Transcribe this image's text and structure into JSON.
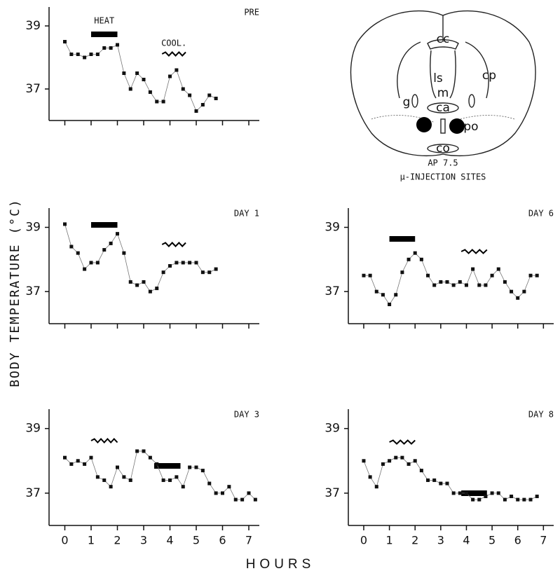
{
  "y_label": "BODY TEMPERATURE (°C)",
  "x_label": "HOURS",
  "diagram": {
    "labels": [
      "cc",
      "ls",
      "cp",
      "m",
      "g",
      "ca",
      "po",
      "co"
    ],
    "caption": "AP 7.5",
    "caption2": "μ-INJECTION SITES"
  },
  "chart_data": [
    {
      "type": "line",
      "title": "PRE",
      "color": "#111111",
      "x": [
        0,
        0.25,
        0.5,
        0.75,
        1,
        1.25,
        1.5,
        1.75,
        2,
        2.25,
        2.5,
        2.75,
        3,
        3.25,
        3.5,
        3.75,
        4,
        4.25,
        4.5,
        4.75,
        5,
        5.25,
        5.5,
        5.75
      ],
      "values": [
        38.5,
        38.1,
        38.1,
        38.0,
        38.1,
        38.1,
        38.3,
        38.3,
        38.4,
        37.5,
        37.0,
        37.5,
        37.3,
        36.9,
        36.6,
        36.6,
        37.4,
        37.6,
        37.0,
        36.8,
        36.3,
        36.5,
        36.8,
        36.7
      ],
      "heat": [
        1,
        2
      ],
      "cool": [
        3.7,
        4.6
      ],
      "heat_label": "HEAT",
      "cool_label": "COOL.",
      "xlim": [
        -0.6,
        7.4
      ],
      "xticks": [
        0,
        1,
        2,
        3,
        4,
        5,
        6,
        7
      ],
      "show_xtick_labels": false,
      "ylim": [
        36,
        39.6
      ],
      "yticks": [
        37,
        39
      ]
    },
    {
      "type": "line",
      "title": "DAY 1",
      "color": "#111111",
      "x": [
        0,
        0.25,
        0.5,
        0.75,
        1,
        1.25,
        1.5,
        1.75,
        2,
        2.25,
        2.5,
        2.75,
        3,
        3.25,
        3.5,
        3.75,
        4,
        4.25,
        4.5,
        4.75,
        5,
        5.25,
        5.5,
        5.75
      ],
      "values": [
        39.1,
        38.4,
        38.2,
        37.7,
        37.9,
        37.9,
        38.3,
        38.5,
        38.8,
        38.2,
        37.3,
        37.2,
        37.3,
        37.0,
        37.1,
        37.6,
        37.8,
        37.9,
        37.9,
        37.9,
        37.9,
        37.6,
        37.6,
        37.7
      ],
      "heat": [
        1,
        2
      ],
      "cool": [
        3.7,
        4.6
      ],
      "xlim": [
        -0.6,
        7.4
      ],
      "xticks": [
        0,
        1,
        2,
        3,
        4,
        5,
        6,
        7
      ],
      "show_xtick_labels": false,
      "ylim": [
        36,
        39.6
      ],
      "yticks": [
        37,
        39
      ]
    },
    {
      "type": "line",
      "title": "DAY 6",
      "color": "#111111",
      "x": [
        0,
        0.25,
        0.5,
        0.75,
        1,
        1.25,
        1.5,
        1.75,
        2,
        2.25,
        2.5,
        2.75,
        3,
        3.25,
        3.5,
        3.75,
        4,
        4.25,
        4.5,
        4.75,
        5,
        5.25,
        5.5,
        5.75,
        6,
        6.25,
        6.5,
        6.75
      ],
      "values": [
        37.5,
        37.5,
        37.0,
        36.9,
        36.6,
        36.9,
        37.6,
        38.0,
        38.2,
        38.0,
        37.5,
        37.2,
        37.3,
        37.3,
        37.2,
        37.3,
        37.2,
        37.7,
        37.2,
        37.2,
        37.5,
        37.7,
        37.3,
        37.0,
        36.8,
        37.0,
        37.5,
        37.5
      ],
      "heat": [
        1,
        2
      ],
      "cool": [
        3.8,
        4.8
      ],
      "xlim": [
        -0.6,
        7.4
      ],
      "xticks": [
        0,
        1,
        2,
        3,
        4,
        5,
        6,
        7
      ],
      "show_xtick_labels": false,
      "ylim": [
        36,
        39.6
      ],
      "yticks": [
        37,
        39
      ]
    },
    {
      "type": "line",
      "title": "DAY 3",
      "color": "#111111",
      "x": [
        0,
        0.25,
        0.5,
        0.75,
        1,
        1.25,
        1.5,
        1.75,
        2,
        2.25,
        2.5,
        2.75,
        3,
        3.25,
        3.5,
        3.75,
        4,
        4.25,
        4.5,
        4.75,
        5,
        5.25,
        5.5,
        5.75,
        6,
        6.25,
        6.5,
        6.75,
        7,
        7.25
      ],
      "values": [
        38.1,
        37.9,
        38.0,
        37.9,
        38.1,
        37.5,
        37.4,
        37.2,
        37.8,
        37.5,
        37.4,
        38.3,
        38.3,
        38.1,
        37.9,
        37.4,
        37.4,
        37.5,
        37.2,
        37.8,
        37.8,
        37.7,
        37.3,
        37.0,
        37.0,
        37.2,
        36.8,
        36.8,
        37.0,
        36.8
      ],
      "heat": [
        3.4,
        4.4
      ],
      "cool": [
        1,
        2
      ],
      "xlim": [
        -0.6,
        7.4
      ],
      "xticks": [
        0,
        1,
        2,
        3,
        4,
        5,
        6,
        7
      ],
      "show_xtick_labels": true,
      "ylim": [
        36,
        39.6
      ],
      "yticks": [
        37,
        39
      ]
    },
    {
      "type": "line",
      "title": "DAY 8",
      "color": "#111111",
      "x": [
        0,
        0.25,
        0.5,
        0.75,
        1,
        1.25,
        1.5,
        1.75,
        2,
        2.25,
        2.5,
        2.75,
        3,
        3.25,
        3.5,
        3.75,
        4,
        4.25,
        4.5,
        4.75,
        5,
        5.25,
        5.5,
        5.75,
        6,
        6.25,
        6.5,
        6.75
      ],
      "values": [
        38.0,
        37.5,
        37.2,
        37.9,
        38.0,
        38.1,
        38.1,
        37.9,
        38.0,
        37.7,
        37.4,
        37.4,
        37.3,
        37.3,
        37.0,
        37.0,
        37.0,
        36.8,
        36.8,
        36.9,
        37.0,
        37.0,
        36.8,
        36.9,
        36.8,
        36.8,
        36.8,
        36.9
      ],
      "heat": [
        3.8,
        4.8
      ],
      "cool": [
        1,
        2
      ],
      "xlim": [
        -0.6,
        7.4
      ],
      "xticks": [
        0,
        1,
        2,
        3,
        4,
        5,
        6,
        7
      ],
      "show_xtick_labels": true,
      "ylim": [
        36,
        39.6
      ],
      "yticks": [
        37,
        39
      ]
    }
  ]
}
